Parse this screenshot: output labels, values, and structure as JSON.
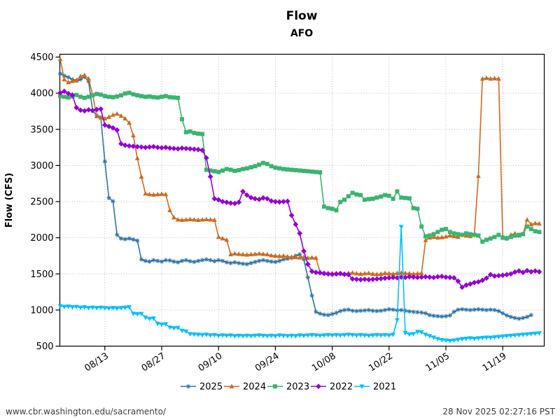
{
  "header": {
    "title": "Flow",
    "subtitle": "AFO"
  },
  "footer": {
    "link": "www.cbr.washington.edu/sacramento/",
    "timestamp": "28 Nov 2025 02:27:16 PST"
  },
  "chart_data": {
    "type": "line",
    "title": "Flow",
    "subtitle": "AFO",
    "ylabel": "Flow (CFS)",
    "ylim": [
      500,
      4500
    ],
    "yticks": [
      500,
      1000,
      1500,
      2000,
      2500,
      3000,
      3500,
      4000,
      4500
    ],
    "grid": "dotted",
    "legend_position": "bottom",
    "x_unit": "days offset from 08/02",
    "x_range_days": [
      0,
      119
    ],
    "xticks": [
      {
        "label": "08/13",
        "day": 11
      },
      {
        "label": "08/27",
        "day": 25
      },
      {
        "label": "09/10",
        "day": 39
      },
      {
        "label": "09/24",
        "day": 53
      },
      {
        "label": "10/08",
        "day": 67
      },
      {
        "label": "10/22",
        "day": 81
      },
      {
        "label": "11/05",
        "day": 95
      },
      {
        "label": "11/19",
        "day": 109
      }
    ],
    "series": [
      {
        "name": "2025",
        "color": "#2e73a8",
        "marker": "star",
        "values": [
          4270,
          4240,
          4220,
          4190,
          4170,
          4190,
          4225,
          4160,
          3755,
          3690,
          3665,
          3055,
          2550,
          2505,
          2040,
          1990,
          1980,
          1990,
          1975,
          1960,
          1700,
          1680,
          1670,
          1690,
          1680,
          1670,
          1690,
          1685,
          1670,
          1660,
          1680,
          1690,
          1675,
          1665,
          1680,
          1690,
          1700,
          1690,
          1675,
          1690,
          1680,
          1660,
          1650,
          1660,
          1650,
          1640,
          1635,
          1650,
          1665,
          1680,
          1690,
          1680,
          1670,
          1665,
          1680,
          1700,
          1710,
          1720,
          1750,
          1770,
          1700,
          1450,
          1200,
          975,
          950,
          935,
          930,
          945,
          960,
          985,
          1000,
          1005,
          990,
          985,
          990,
          995,
          1000,
          990,
          985,
          990,
          1000,
          1010,
          1005,
          995,
          1000,
          990,
          980,
          975,
          970,
          965,
          955,
          930,
          920,
          915,
          910,
          915,
          925,
          975,
          1005,
          1010,
          1005,
          1000,
          1005,
          1010,
          1005,
          1000,
          1005,
          1000,
          985,
          955,
          925,
          905,
          890,
          880,
          890,
          905,
          930,
          null,
          null
        ]
      },
      {
        "name": "2024",
        "color": "#d2691e",
        "marker": "triangle-up",
        "values": [
          4470,
          4190,
          4150,
          4165,
          4180,
          4235,
          4250,
          4200,
          3975,
          3680,
          3660,
          3650,
          3670,
          3700,
          3715,
          3685,
          3650,
          3590,
          3415,
          3100,
          2845,
          2610,
          2600,
          2595,
          2600,
          2605,
          2600,
          2380,
          2280,
          2250,
          2245,
          2250,
          2255,
          2250,
          2245,
          2250,
          2255,
          2250,
          2245,
          2010,
          1990,
          1970,
          1770,
          1780,
          1775,
          1770,
          1765,
          1770,
          1775,
          1780,
          1775,
          1770,
          1755,
          1750,
          1745,
          1750,
          1740,
          1735,
          1730,
          1725,
          1730,
          1720,
          1725,
          1720,
          1525,
          1515,
          1510,
          1505,
          1510,
          1505,
          1500,
          1510,
          1515,
          1505,
          1500,
          1505,
          1510,
          1500,
          1495,
          1500,
          1510,
          1505,
          1500,
          1510,
          1515,
          1510,
          1505,
          1500,
          1505,
          1510,
          1965,
          2000,
          2010,
          2000,
          2005,
          2015,
          2030,
          2020,
          2010,
          2040,
          2030,
          2020,
          2040,
          2853,
          4200,
          4210,
          4200,
          4205,
          4200,
          2020,
          2000,
          2040,
          2060,
          2030,
          2050,
          2250,
          2185,
          2200,
          2195
        ]
      },
      {
        "name": "2023",
        "color": "#3cb371",
        "marker": "square",
        "values": [
          3960,
          3950,
          3940,
          3955,
          3975,
          3950,
          3935,
          3950,
          3970,
          3990,
          3980,
          3960,
          3950,
          3945,
          3955,
          3970,
          3995,
          4005,
          3985,
          3970,
          3960,
          3950,
          3955,
          3945,
          3940,
          3950,
          3960,
          3945,
          3940,
          3935,
          3640,
          3460,
          3470,
          3450,
          3440,
          3435,
          2940,
          2930,
          2920,
          2910,
          2930,
          2950,
          2940,
          2925,
          2935,
          2950,
          2960,
          2975,
          2990,
          3010,
          3035,
          3020,
          2990,
          2970,
          2960,
          2950,
          2945,
          2940,
          2935,
          2930,
          2925,
          2920,
          2915,
          2910,
          2905,
          2430,
          2410,
          2400,
          2380,
          2495,
          2525,
          2575,
          2620,
          2600,
          2590,
          2525,
          2535,
          2540,
          2555,
          2570,
          2590,
          2580,
          2540,
          2640,
          2555,
          2550,
          2545,
          2410,
          2400,
          2155,
          2020,
          2030,
          2050,
          2080,
          2110,
          2120,
          2080,
          2060,
          2050,
          2040,
          2060,
          2050,
          2040,
          2030,
          1945,
          1970,
          1990,
          2010,
          2040,
          2000,
          1990,
          2010,
          2030,
          2040,
          2050,
          2155,
          2120,
          2090,
          2080
        ]
      },
      {
        "name": "2022",
        "color": "#9400d3",
        "marker": "diamond",
        "values": [
          4005,
          4025,
          3995,
          3975,
          3800,
          3765,
          3755,
          3770,
          3760,
          3775,
          3780,
          3560,
          3540,
          3520,
          3490,
          3300,
          3280,
          3270,
          3265,
          3260,
          3255,
          3250,
          3255,
          3260,
          3250,
          3245,
          3250,
          3240,
          3235,
          3230,
          3240,
          3235,
          3230,
          3225,
          3220,
          3210,
          3105,
          2845,
          2540,
          2525,
          2500,
          2490,
          2480,
          2475,
          2490,
          2640,
          2590,
          2555,
          2540,
          2530,
          2550,
          2540,
          2510,
          2500,
          2495,
          2500,
          2505,
          2310,
          2185,
          2060,
          1815,
          1633,
          1535,
          1520,
          1515,
          1505,
          1500,
          1495,
          1500,
          1505,
          1495,
          1490,
          1430,
          1425,
          1420,
          1425,
          1420,
          1425,
          1430,
          1435,
          1440,
          1445,
          1450,
          1445,
          1455,
          1450,
          1460,
          1455,
          1450,
          1455,
          1460,
          1455,
          1450,
          1460,
          1465,
          1455,
          1450,
          1445,
          1400,
          1315,
          1345,
          1360,
          1380,
          1390,
          1410,
          1440,
          1490,
          1470,
          1475,
          1480,
          1490,
          1500,
          1525,
          1540,
          1520,
          1545,
          1530,
          1540,
          1530
        ]
      },
      {
        "name": "2021",
        "color": "#00bfff",
        "marker": "triangle-down",
        "values": [
          1055,
          1045,
          1050,
          1040,
          1045,
          1035,
          1040,
          1030,
          1035,
          1030,
          1035,
          1030,
          1025,
          1030,
          1025,
          1030,
          1035,
          1040,
          950,
          945,
          948,
          897,
          880,
          885,
          812,
          800,
          806,
          760,
          750,
          755,
          715,
          705,
          668,
          665,
          660,
          655,
          660,
          650,
          655,
          645,
          650,
          645,
          650,
          640,
          645,
          640,
          645,
          640,
          645,
          650,
          645,
          640,
          645,
          640,
          650,
          645,
          640,
          645,
          640,
          650,
          645,
          650,
          655,
          650,
          645,
          650,
          655,
          650,
          655,
          650,
          655,
          660,
          655,
          650,
          655,
          650,
          645,
          650,
          655,
          650,
          655,
          650,
          660,
          860,
          2150,
          685,
          665,
          670,
          700,
          695,
          660,
          640,
          620,
          600,
          585,
          580,
          575,
          580,
          590,
          600,
          605,
          610,
          605,
          610,
          615,
          620,
          618,
          625,
          630,
          635,
          640,
          645,
          650,
          655,
          660,
          665,
          670,
          675,
          680
        ]
      }
    ]
  }
}
